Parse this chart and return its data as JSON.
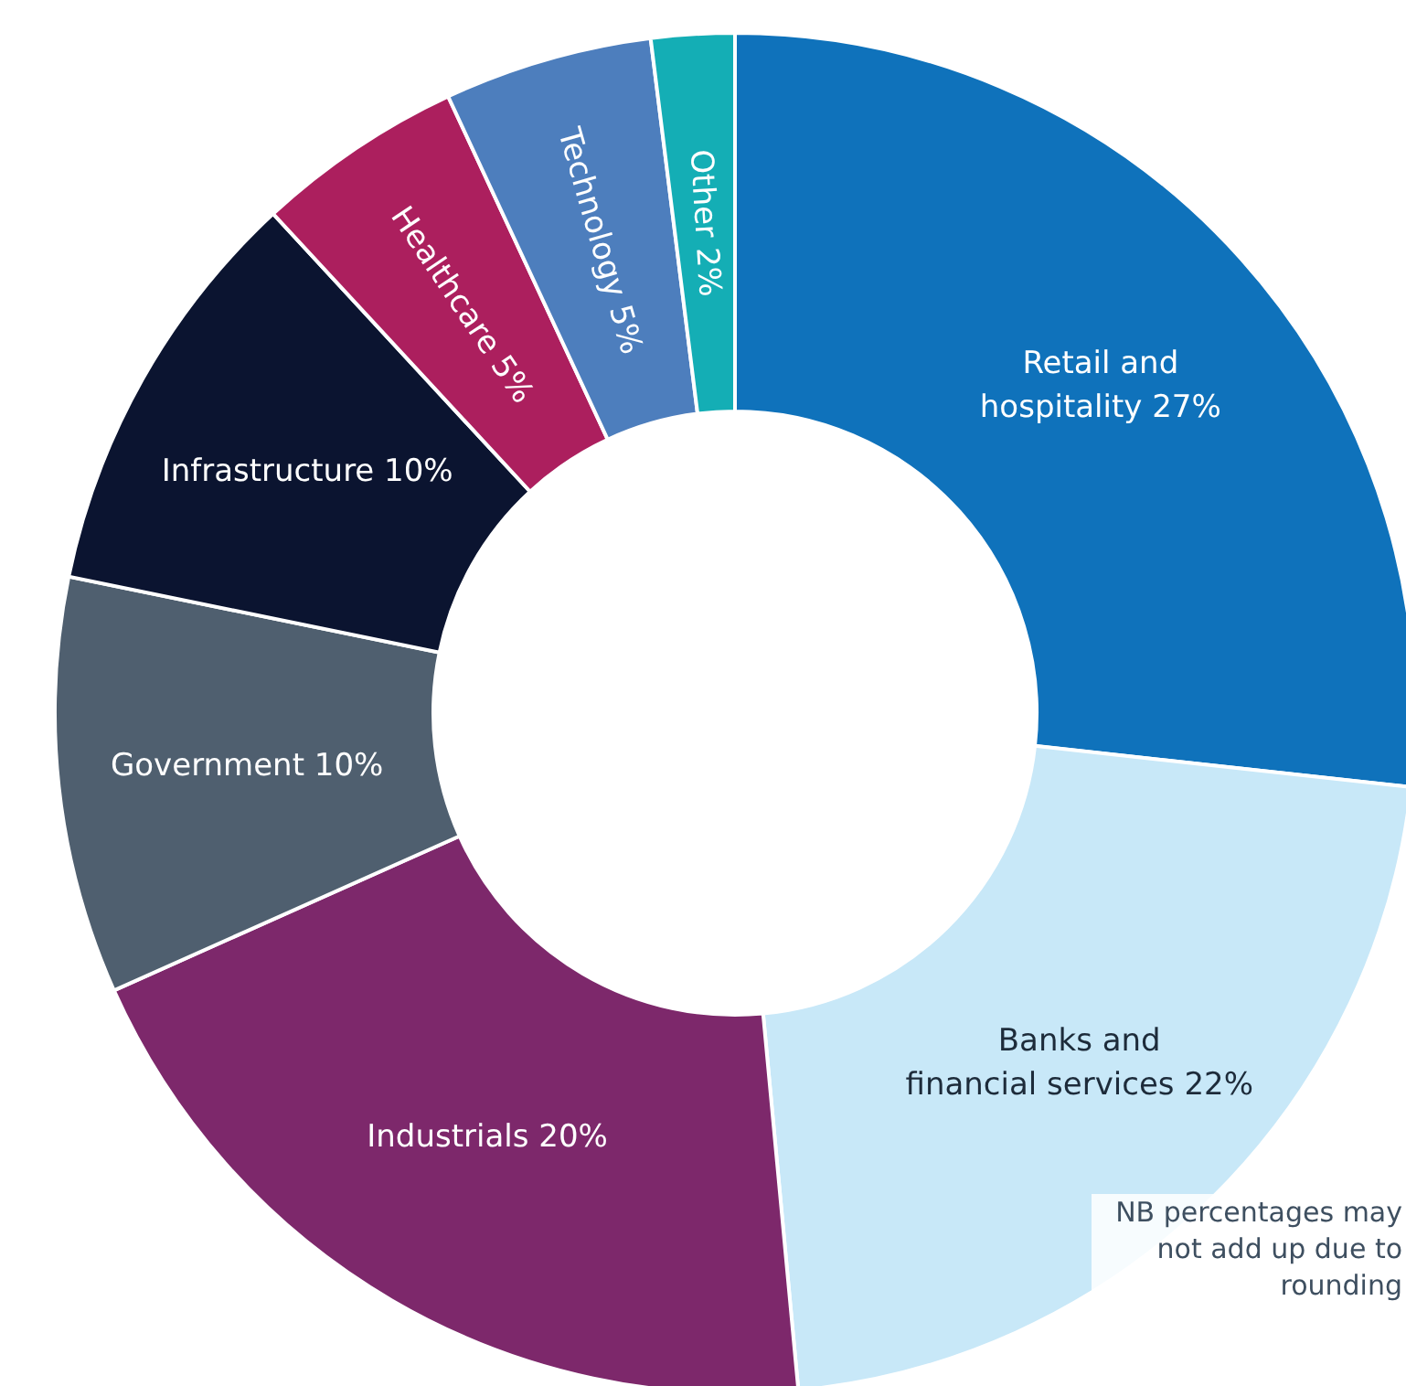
{
  "chart_data": {
    "type": "donut",
    "categories": [
      "Retail and hospitality",
      "Banks and financial services",
      "Industrials",
      "Government",
      "Infrastructure",
      "Healthcare",
      "Technology",
      "Other"
    ],
    "values": [
      27,
      22,
      20,
      10,
      10,
      5,
      5,
      2
    ],
    "value_labels": [
      "27%",
      "22%",
      "20%",
      "10%",
      "10%",
      "5%",
      "5%",
      "2%"
    ],
    "colors": [
      "#0f72bb",
      "#c8e8f8",
      "#7d286b",
      "#4f5f6f",
      "#0b1430",
      "#ac1f5e",
      "#4d7ebd",
      "#14aeb5"
    ],
    "legend": false,
    "annotations": [
      "NB percentages may not add up due to rounding"
    ]
  }
}
